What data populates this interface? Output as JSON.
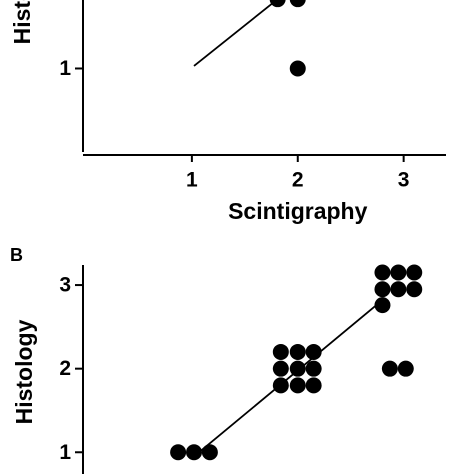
{
  "chart_data": [
    {
      "type": "scatter",
      "y_label": "Histology",
      "x_label": "Scintigraphy",
      "xlim": [
        0,
        3.4
      ],
      "xticks": [
        1,
        2,
        3
      ],
      "ylim": [
        0,
        1.82
      ],
      "yticks": [
        1
      ],
      "color": "#000000",
      "series": [
        {
          "x": [
            1.81,
            2.0,
            2.0
          ],
          "y": [
            1.83,
            1.83,
            1.0
          ]
        }
      ],
      "fit_line": {
        "x": [
          1.02,
          1.78
        ],
        "y": [
          1.03,
          1.8
        ]
      }
    },
    {
      "type": "scatter",
      "panel_label": "B",
      "y_label": "Histology",
      "xlim": [
        0,
        3.4
      ],
      "ylim": [
        0.74,
        3.24
      ],
      "yticks": [
        1,
        2,
        3
      ],
      "color": "#000000",
      "series": [
        {
          "x": [
            0.87,
            1.02,
            1.17,
            1.84,
            2.0,
            2.15,
            1.84,
            2.0,
            2.15,
            1.84,
            2.0,
            2.15,
            2.87,
            3.02,
            2.8,
            2.95,
            3.1,
            2.8,
            2.95,
            3.1,
            2.8
          ],
          "y": [
            1.0,
            1.0,
            1.0,
            2.2,
            2.2,
            2.2,
            2.0,
            2.0,
            2.0,
            1.8,
            1.8,
            1.8,
            2.0,
            2.0,
            3.15,
            3.15,
            3.15,
            2.95,
            2.95,
            2.95,
            2.76
          ]
        }
      ],
      "fit_line": {
        "x": [
          1.03,
          2.8
        ],
        "y": [
          0.96,
          2.82
        ]
      }
    }
  ]
}
